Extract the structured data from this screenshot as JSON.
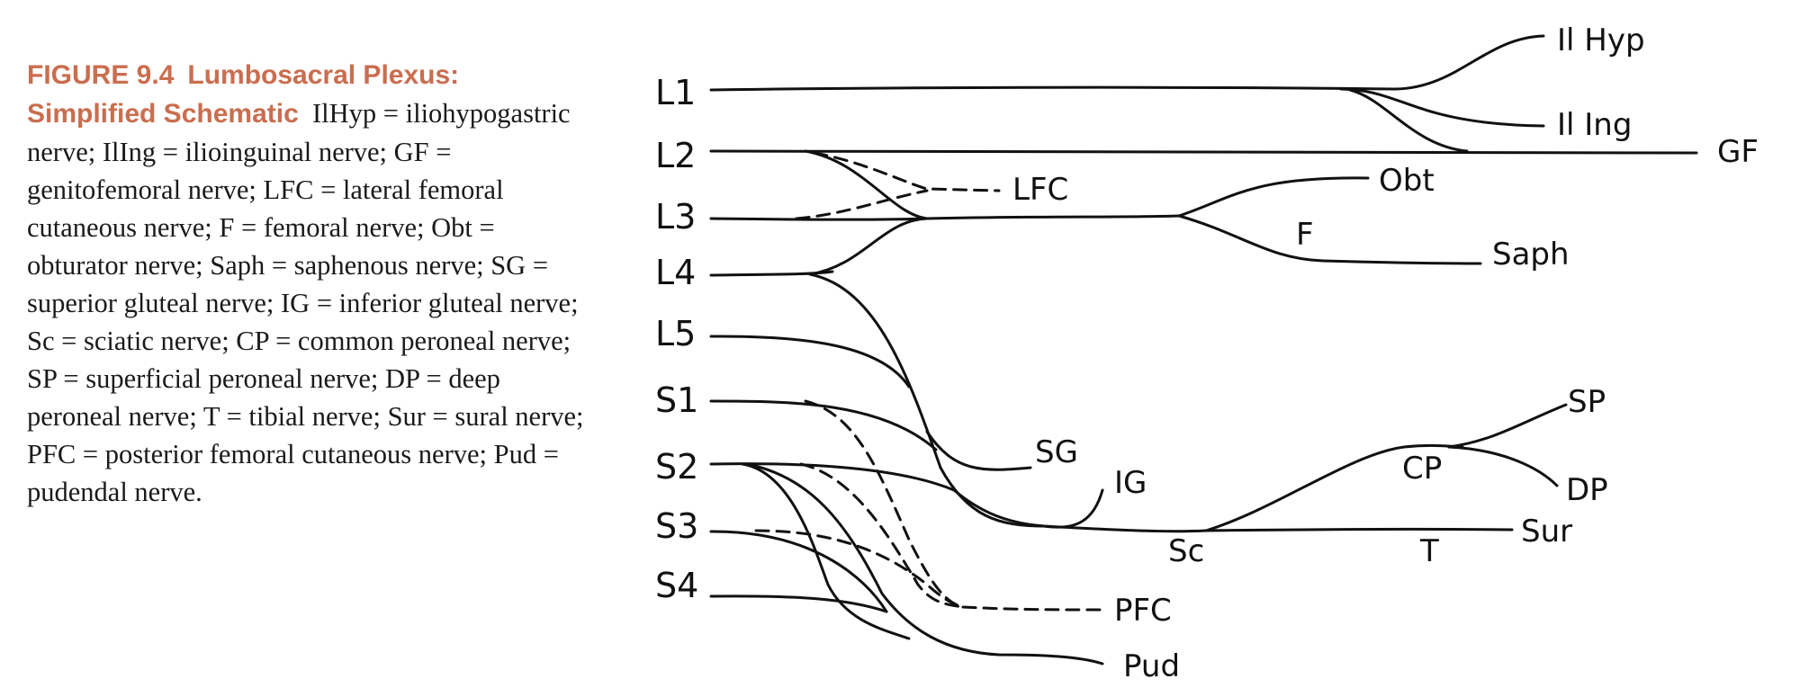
{
  "caption": {
    "figure_label": "FIGURE 9.4",
    "figure_title": "Lumbosacral Plexus: Simplified Schematic",
    "body": "IlHyp = iliohypogastric nerve; IlIng = ilioinguinal nerve; GF = genitofemoral nerve; LFC = lateral femoral cutaneous nerve; F = femoral nerve; Obt = obturator nerve; Saph = saphenous nerve; SG = superior gluteal nerve; IG = inferior gluteal nerve; Sc = sciatic nerve; CP = common peroneal nerve; SP = superficial peroneal nerve; DP = deep peroneal nerve; T = tibial nerve; Sur = sural nerve; PFC = posterior femoral cutaneous nerve; Pud = pudendal nerve."
  },
  "diagram": {
    "roots": [
      "L1",
      "L2",
      "L3",
      "L4",
      "L5",
      "S1",
      "S2",
      "S3",
      "S4"
    ],
    "labels": {
      "ilhyp": "Il Hyp",
      "iling": "Il Ing",
      "gf": "GF",
      "lfc": "LFC",
      "obt": "Obt",
      "f": "F",
      "saph": "Saph",
      "sg": "SG",
      "ig": "IG",
      "sc": "Sc",
      "cp": "CP",
      "sp": "SP",
      "dp": "DP",
      "t": "T",
      "sur": "Sur",
      "pfc": "PFC",
      "pud": "Pud"
    }
  }
}
